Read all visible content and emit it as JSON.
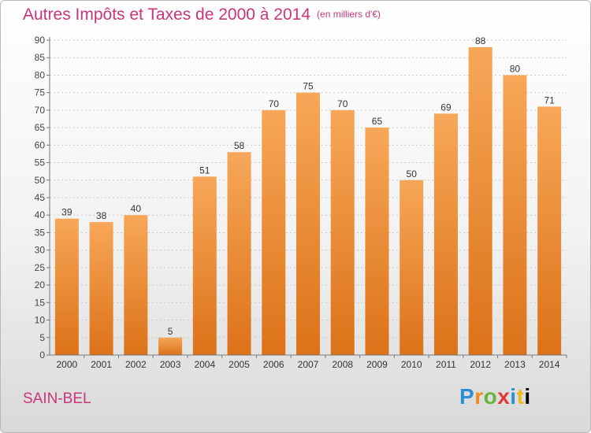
{
  "header": {
    "title": "Autres Impôts et Taxes de 2000 à 2014",
    "unit": "(en milliers d'€)"
  },
  "footer": {
    "place": "SAIN-BEL",
    "logo_text": "Proxiti"
  },
  "colors": {
    "title": "#c8357a",
    "bar_top": "#f7a758",
    "bar_bottom": "#dc7218",
    "grid": "#cccccc"
  },
  "chart_data": {
    "type": "bar",
    "title": "Autres Impôts et Taxes de 2000 à 2014",
    "subtitle": "(en milliers d'€)",
    "xlabel": "",
    "ylabel": "",
    "categories": [
      "2000",
      "2001",
      "2002",
      "2003",
      "2004",
      "2005",
      "2006",
      "2007",
      "2008",
      "2009",
      "2010",
      "2011",
      "2012",
      "2013",
      "2014"
    ],
    "values": [
      39,
      38,
      40,
      5,
      51,
      58,
      70,
      75,
      70,
      65,
      50,
      69,
      88,
      80,
      71
    ],
    "ylim": [
      0,
      90
    ],
    "yticks": [
      0,
      5,
      10,
      15,
      20,
      25,
      30,
      35,
      40,
      45,
      50,
      55,
      60,
      65,
      70,
      75,
      80,
      85,
      90
    ],
    "grid": true,
    "data_labels": true
  }
}
